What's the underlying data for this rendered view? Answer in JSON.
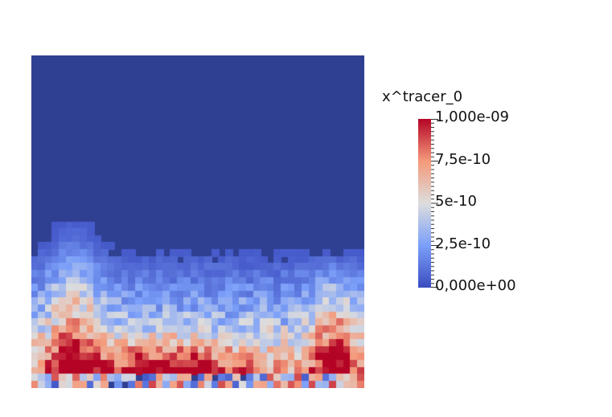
{
  "legend": {
    "title": "x^tracer_0",
    "labels": [
      "1,000e-09",
      "7,5e-10",
      "5e-10",
      "2,5e-10",
      "0,000e+00"
    ],
    "range": [
      0,
      1e-09
    ]
  },
  "colormap": {
    "low": "#3b4cc0",
    "mid": "#dddddd",
    "high": "#b40426",
    "background": "#2f3f92"
  },
  "field": {
    "grid": [
      48,
      48
    ],
    "description_values": "tracer concentration field; highest values concentrated along bottom edge"
  }
}
